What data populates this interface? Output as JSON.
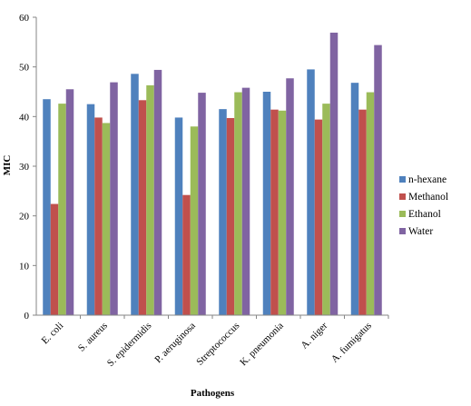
{
  "chart_data": {
    "type": "bar",
    "title": "",
    "xlabel": "Pathogens",
    "ylabel": "MIC",
    "ylim": [
      0,
      60
    ],
    "yticks": [
      0,
      10,
      20,
      30,
      40,
      50,
      60
    ],
    "grid": false,
    "legend_position": "right",
    "categories": [
      "E. coli",
      "S. aureus",
      "S. epidermidis",
      "P. aeruginosa",
      "Streptococcus",
      "K. pneumonia",
      "A. niger",
      "A. fumigatus"
    ],
    "series": [
      {
        "name": "n-hexane",
        "color": "#4F81BD",
        "values": [
          43.5,
          42.5,
          48.6,
          39.8,
          41.5,
          45.0,
          49.5,
          46.8
        ]
      },
      {
        "name": "Methanol",
        "color": "#C0504D",
        "values": [
          22.4,
          39.8,
          43.3,
          24.2,
          39.7,
          41.4,
          39.4,
          41.4
        ]
      },
      {
        "name": "Ethanol",
        "color": "#9BBB59",
        "values": [
          42.6,
          38.7,
          46.3,
          38.0,
          44.9,
          41.2,
          42.6,
          44.9
        ]
      },
      {
        "name": "Water",
        "color": "#8064A2",
        "values": [
          45.5,
          46.9,
          49.4,
          44.8,
          45.8,
          47.7,
          56.9,
          54.4
        ]
      }
    ]
  }
}
